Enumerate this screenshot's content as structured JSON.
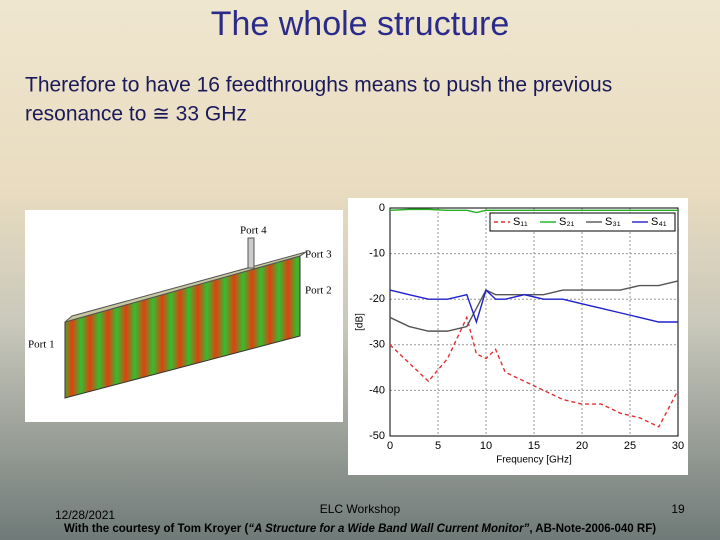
{
  "title": "The whole structure",
  "body": [
    "Therefore to have 16 feedthroughs means to push the previous",
    "resonance to ≅ 33 GHz"
  ],
  "figure": {
    "ports": [
      "Port 4",
      "Port 3",
      "Port 2",
      "Port 1"
    ]
  },
  "chart_data": {
    "type": "line",
    "y_label": "[dB]",
    "x_label": "Frequency [GHz]",
    "x": [
      0,
      2,
      4,
      6,
      8,
      9,
      10,
      11,
      12,
      14,
      16,
      18,
      20,
      22,
      24,
      26,
      28,
      30
    ],
    "series": [
      {
        "name": "S₁₁",
        "color": "#e03030",
        "dash": true,
        "values": [
          -30,
          -34,
          -38,
          -33,
          -24,
          -32,
          -33,
          -31,
          -36,
          -38,
          -40,
          -42,
          -43,
          -43,
          -45,
          -46,
          -48,
          -40
        ]
      },
      {
        "name": "S₂₁",
        "color": "#20b020",
        "values": [
          -0.5,
          -0.3,
          -0.3,
          -0.5,
          -0.5,
          -1,
          -0.5,
          -0.5,
          -0.5,
          -0.5,
          -0.5,
          -0.5,
          -0.5,
          -0.5,
          -0.5,
          -0.5,
          -0.5,
          -0.5
        ]
      },
      {
        "name": "S₃₁",
        "color": "#555555",
        "values": [
          -24,
          -26,
          -27,
          -27,
          -26,
          -22,
          -18,
          -19,
          -19,
          -19,
          -19,
          -18,
          -18,
          -18,
          -18,
          -17,
          -17,
          -16
        ]
      },
      {
        "name": "S₄₁",
        "color": "#2020d0",
        "values": [
          -18,
          -19,
          -20,
          -20,
          -19,
          -25,
          -18,
          -20,
          -20,
          -19,
          -20,
          -20,
          -21,
          -22,
          -23,
          -24,
          -25,
          -25
        ]
      }
    ],
    "xlim": [
      0,
      30
    ],
    "xticks": [
      0,
      5,
      10,
      15,
      20,
      25,
      30
    ],
    "ylim": [
      -50,
      0
    ],
    "yticks": [
      0,
      -10,
      -20,
      -30,
      -40,
      -50
    ],
    "grid": true
  },
  "footer": {
    "date": "12/28/2021",
    "event": "ELC Workshop",
    "page": "19",
    "credit": [
      "With the courtesy of Tom Kroyer (",
      "“A Structure for a Wide Band Wall Current Monitor”",
      ", AB-Note-2006-040 RF)"
    ]
  }
}
